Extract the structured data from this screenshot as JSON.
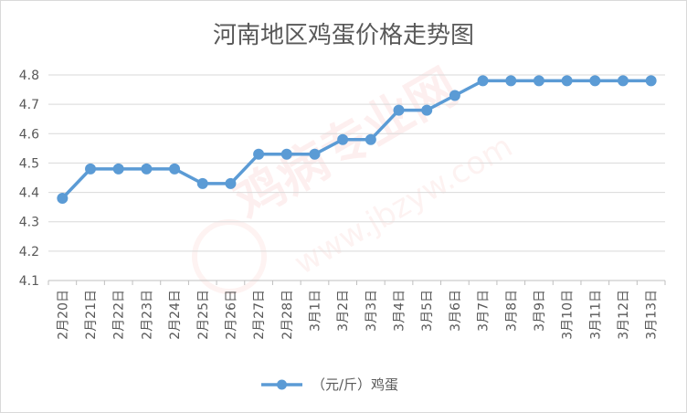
{
  "chart_data": {
    "type": "line",
    "title": "河南地区鸡蛋价格走势图",
    "xlabel": "",
    "ylabel": "",
    "ylim": [
      4.1,
      4.8
    ],
    "yticks": [
      "4.1",
      "4.2",
      "4.3",
      "4.4",
      "4.5",
      "4.6",
      "4.7",
      "4.8"
    ],
    "grid": true,
    "legend_position": "bottom",
    "color": "#5b9bd5",
    "categories": [
      "2月20日",
      "2月21日",
      "2月22日",
      "2月23日",
      "2月24日",
      "2月25日",
      "2月26日",
      "2月27日",
      "2月28日",
      "3月1日",
      "3月2日",
      "3月3日",
      "3月4日",
      "3月5日",
      "3月6日",
      "3月7日",
      "3月8日",
      "3月9日",
      "3月10日",
      "3月11日",
      "3月12日",
      "3月13日"
    ],
    "series": [
      {
        "name": "（元/斤）鸡蛋",
        "values": [
          4.38,
          4.48,
          4.48,
          4.48,
          4.48,
          4.43,
          4.43,
          4.53,
          4.53,
          4.53,
          4.58,
          4.58,
          4.68,
          4.68,
          4.73,
          4.78,
          4.78,
          4.78,
          4.78,
          4.78,
          4.78,
          4.78
        ]
      }
    ]
  }
}
